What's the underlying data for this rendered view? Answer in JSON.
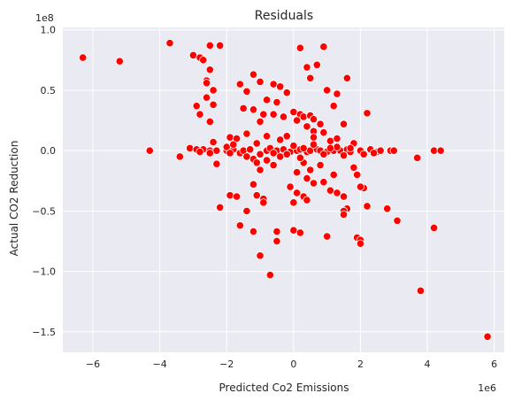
{
  "chart_data": {
    "type": "scatter",
    "title": "Residuals",
    "xlabel": "Predicted Co2 Emissions",
    "ylabel": "Actual CO2  Reduction",
    "x_offset_label": "1e6",
    "y_offset_label": "1e8",
    "x_ticks": [
      -6,
      -4,
      -2,
      0,
      2,
      4,
      6
    ],
    "x_tick_labels": [
      "−6",
      "−4",
      "−2",
      "0",
      "2",
      "4",
      "6"
    ],
    "y_ticks": [
      1.0,
      0.5,
      0.0,
      -0.5,
      -1.0,
      -1.5
    ],
    "y_tick_labels": [
      "1.0",
      "0.5",
      "0.0",
      "−0.5",
      "−1.0",
      "−1.5"
    ],
    "xlim": [
      -6.9,
      6.3
    ],
    "ylim": [
      -1.67,
      1.02
    ],
    "grid": true,
    "colors": {
      "marker": "#ff0000",
      "marker_edge": "#ffffff",
      "background": "#eaeaf2",
      "grid": "#ffffff"
    },
    "points": [
      [
        -6.3,
        0.77
      ],
      [
        -5.2,
        0.74
      ],
      [
        -4.3,
        0.0
      ],
      [
        -3.7,
        0.89
      ],
      [
        -3.4,
        -0.05
      ],
      [
        -3.0,
        0.79
      ],
      [
        -2.8,
        0.77
      ],
      [
        -2.7,
        0.75
      ],
      [
        -2.5,
        0.87
      ],
      [
        -2.2,
        0.87
      ],
      [
        -2.5,
        0.67
      ],
      [
        -2.6,
        0.58
      ],
      [
        -2.6,
        0.56
      ],
      [
        -2.4,
        0.5
      ],
      [
        -2.6,
        0.44
      ],
      [
        -2.4,
        0.38
      ],
      [
        -2.8,
        0.3
      ],
      [
        -2.5,
        0.24
      ],
      [
        -2.9,
        0.37
      ],
      [
        -3.1,
        0.02
      ],
      [
        -2.9,
        0.01
      ],
      [
        -2.7,
        0.01
      ],
      [
        -2.5,
        0.0
      ],
      [
        -2.3,
        0.0
      ],
      [
        -2.3,
        -0.11
      ],
      [
        -2.5,
        -0.02
      ],
      [
        -2.2,
        -0.47
      ],
      [
        -1.9,
        -0.37
      ],
      [
        -1.7,
        -0.38
      ],
      [
        -1.6,
        -0.62
      ],
      [
        -1.4,
        -0.5
      ],
      [
        -1.2,
        -0.67
      ],
      [
        -1.0,
        -0.87
      ],
      [
        -0.9,
        -0.4
      ],
      [
        -1.1,
        -0.37
      ],
      [
        -0.9,
        -0.43
      ],
      [
        -0.7,
        -1.03
      ],
      [
        -0.5,
        -0.75
      ],
      [
        -0.5,
        -0.67
      ],
      [
        -1.2,
        -0.28
      ],
      [
        -1.0,
        -0.16
      ],
      [
        -1.2,
        -0.07
      ],
      [
        -1.1,
        -0.1
      ],
      [
        -0.8,
        -0.08
      ],
      [
        -0.6,
        -0.12
      ],
      [
        -1.6,
        0.55
      ],
      [
        -1.4,
        0.49
      ],
      [
        -1.2,
        0.63
      ],
      [
        -1.0,
        0.57
      ],
      [
        -0.6,
        0.55
      ],
      [
        -0.4,
        0.53
      ],
      [
        -0.2,
        0.48
      ],
      [
        -0.5,
        0.4
      ],
      [
        -0.8,
        0.42
      ],
      [
        -1.5,
        0.35
      ],
      [
        -1.2,
        0.34
      ],
      [
        -0.9,
        0.3
      ],
      [
        -0.6,
        0.3
      ],
      [
        -0.3,
        0.28
      ],
      [
        -1.0,
        0.24
      ],
      [
        -1.9,
        0.11
      ],
      [
        -1.7,
        0.1
      ],
      [
        -1.4,
        0.14
      ],
      [
        -1.1,
        0.06
      ],
      [
        -0.8,
        0.12
      ],
      [
        -0.4,
        0.09
      ],
      [
        -0.2,
        0.12
      ],
      [
        0.0,
        0.32
      ],
      [
        0.2,
        0.3
      ],
      [
        0.1,
        0.25
      ],
      [
        0.3,
        0.28
      ],
      [
        0.5,
        0.29
      ],
      [
        0.6,
        0.26
      ],
      [
        0.4,
        0.2
      ],
      [
        0.8,
        0.22
      ],
      [
        0.6,
        0.16
      ],
      [
        0.9,
        0.15
      ],
      [
        0.6,
        0.11
      ],
      [
        0.2,
        0.85
      ],
      [
        0.9,
        0.86
      ],
      [
        0.4,
        0.69
      ],
      [
        0.7,
        0.71
      ],
      [
        0.5,
        0.6
      ],
      [
        1.0,
        0.5
      ],
      [
        1.3,
        0.47
      ],
      [
        1.6,
        0.6
      ],
      [
        1.2,
        0.37
      ],
      [
        1.5,
        0.22
      ],
      [
        2.2,
        0.31
      ],
      [
        1.1,
        0.08
      ],
      [
        1.3,
        0.1
      ],
      [
        1.8,
        0.06
      ],
      [
        0.3,
        -0.1
      ],
      [
        0.1,
        -0.18
      ],
      [
        0.5,
        -0.16
      ],
      [
        0.8,
        -0.12
      ],
      [
        0.4,
        -0.23
      ],
      [
        0.6,
        -0.27
      ],
      [
        0.9,
        -0.26
      ],
      [
        1.2,
        -0.2
      ],
      [
        1.1,
        -0.33
      ],
      [
        1.3,
        -0.35
      ],
      [
        1.5,
        -0.38
      ],
      [
        1.6,
        -0.48
      ],
      [
        1.5,
        -0.5
      ],
      [
        1.5,
        -0.53
      ],
      [
        1.9,
        -0.72
      ],
      [
        2.0,
        -0.74
      ],
      [
        2.0,
        -0.77
      ],
      [
        2.2,
        -0.46
      ],
      [
        2.1,
        -0.31
      ],
      [
        2.0,
        -0.3
      ],
      [
        1.8,
        -0.14
      ],
      [
        1.9,
        -0.2
      ],
      [
        -0.1,
        -0.3
      ],
      [
        0.0,
        -0.43
      ],
      [
        0.1,
        -0.35
      ],
      [
        0.3,
        -0.38
      ],
      [
        0.4,
        -0.41
      ],
      [
        1.0,
        -0.71
      ],
      [
        0.0,
        -0.66
      ],
      [
        0.2,
        -0.68
      ],
      [
        2.8,
        -0.48
      ],
      [
        3.1,
        -0.58
      ],
      [
        2.5,
        -0.01
      ],
      [
        2.9,
        0.0
      ],
      [
        3.0,
        0.0
      ],
      [
        3.7,
        -0.06
      ],
      [
        4.2,
        0.0
      ],
      [
        4.4,
        0.0
      ],
      [
        4.2,
        -0.64
      ],
      [
        3.8,
        -1.16
      ],
      [
        5.8,
        -1.54
      ],
      [
        -2.0,
        0.0
      ],
      [
        -1.8,
        0.01
      ],
      [
        -1.6,
        -0.02
      ],
      [
        -1.5,
        0.0
      ],
      [
        -1.3,
        0.01
      ],
      [
        -0.8,
        0.0
      ],
      [
        -0.5,
        0.0
      ],
      [
        -0.3,
        0.01
      ],
      [
        -0.1,
        -0.01
      ],
      [
        0.1,
        0.0
      ],
      [
        0.2,
        0.01
      ],
      [
        0.4,
        -0.01
      ],
      [
        0.5,
        0.0
      ],
      [
        0.7,
        0.01
      ],
      [
        0.8,
        0.0
      ],
      [
        1.0,
        -0.01
      ],
      [
        1.2,
        0.0
      ],
      [
        1.4,
        0.0
      ],
      [
        1.6,
        0.01
      ],
      [
        1.7,
        -0.01
      ],
      [
        2.0,
        0.0
      ],
      [
        2.3,
        0.01
      ],
      [
        2.6,
        0.0
      ],
      [
        -2.0,
        0.03
      ],
      [
        -1.0,
        -0.03
      ],
      [
        0.0,
        0.04
      ],
      [
        1.5,
        -0.04
      ],
      [
        -1.8,
        0.05
      ],
      [
        1.3,
        0.03
      ],
      [
        -0.4,
        -0.05
      ],
      [
        0.6,
        0.05
      ],
      [
        -1.4,
        -0.05
      ],
      [
        2.1,
        -0.03
      ],
      [
        -2.4,
        0.07
      ],
      [
        -0.7,
        0.02
      ],
      [
        -0.6,
        -0.02
      ],
      [
        0.3,
        0.02
      ],
      [
        0.9,
        -0.03
      ],
      [
        1.7,
        0.02
      ],
      [
        -1.9,
        -0.02
      ],
      [
        2.4,
        -0.02
      ],
      [
        -2.8,
        -0.01
      ],
      [
        -0.2,
        -0.03
      ],
      [
        1.1,
        0.02
      ],
      [
        0.2,
        -0.06
      ]
    ]
  }
}
